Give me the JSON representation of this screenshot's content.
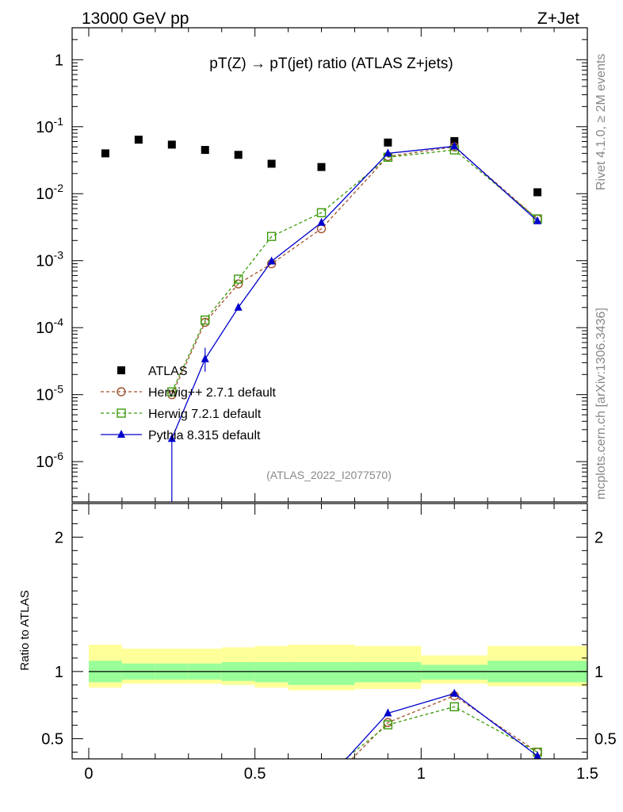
{
  "header": {
    "left": "13000 GeV pp",
    "right": "Z+Jet"
  },
  "side": {
    "rivet": "Rivet 4.1.0, ≥ 2M events",
    "mcplots": "mcplots.cern.ch [arXiv:1306.3436]"
  },
  "chart_data": {
    "type": "line",
    "title": "pT(Z) → pT(jet) ratio (ATLAS Z+jets)",
    "analysis": "(ATLAS_2022_I2077570)",
    "xlim": [
      -0.05,
      1.5
    ],
    "ylim_main": [
      2.5e-07,
      3.0
    ],
    "ylim_ratio": [
      0.35,
      2.25
    ],
    "ylabel_ratio": "Ratio to ATLAS",
    "yticks_main": [
      "10^-6",
      "10^-5",
      "10^-4",
      "10^-3",
      "10^-2",
      "10^-1",
      "1"
    ],
    "yticks_ratio": [
      "0.5",
      "1",
      "2"
    ],
    "xticks": [
      "0",
      "0.5",
      "1",
      "1.5"
    ],
    "bins": [
      [
        0.0,
        0.1
      ],
      [
        0.1,
        0.2
      ],
      [
        0.2,
        0.3
      ],
      [
        0.3,
        0.4
      ],
      [
        0.4,
        0.5
      ],
      [
        0.5,
        0.6
      ],
      [
        0.6,
        0.8
      ],
      [
        0.8,
        1.0
      ],
      [
        1.0,
        1.2
      ],
      [
        1.2,
        1.5
      ]
    ],
    "x": [
      0.05,
      0.15,
      0.25,
      0.35,
      0.45,
      0.55,
      0.7,
      0.9,
      1.1,
      1.35
    ],
    "data": {
      "name": "ATLAS",
      "values": [
        0.04,
        0.064,
        0.054,
        0.045,
        0.038,
        0.028,
        0.025,
        0.058,
        0.061,
        0.0105
      ]
    },
    "series": [
      {
        "name": "Herwig++ 2.7.1 default",
        "color": "#a0522d",
        "marker": "open-circle",
        "dash": true,
        "values": [
          null,
          null,
          1e-05,
          0.00012,
          0.00045,
          0.0009,
          0.003,
          0.036,
          0.05,
          0.0042
        ]
      },
      {
        "name": "Herwig 7.2.1 default",
        "color": "#3a9a0a",
        "marker": "open-square",
        "dash": true,
        "values": [
          null,
          null,
          1.1e-05,
          0.00013,
          0.00053,
          0.0023,
          0.0052,
          0.035,
          0.045,
          0.0042
        ]
      },
      {
        "name": "Pythia 8.315 default",
        "color": "#0000cc",
        "marker": "filled-triangle",
        "dash": false,
        "values": [
          null,
          null,
          2.2e-06,
          3.4e-05,
          0.0002,
          0.00098,
          0.0037,
          0.04,
          0.051,
          0.0039
        ]
      }
    ],
    "ratio_bands": {
      "inner": [
        [
          0.92,
          1.08
        ],
        [
          0.94,
          1.06
        ],
        [
          0.94,
          1.06
        ],
        [
          0.94,
          1.06
        ],
        [
          0.93,
          1.07
        ],
        [
          0.92,
          1.07
        ],
        [
          0.9,
          1.07
        ],
        [
          0.92,
          1.07
        ],
        [
          0.94,
          1.05
        ],
        [
          0.92,
          1.08
        ]
      ],
      "outer": [
        [
          0.88,
          1.2
        ],
        [
          0.91,
          1.17
        ],
        [
          0.91,
          1.17
        ],
        [
          0.91,
          1.17
        ],
        [
          0.9,
          1.18
        ],
        [
          0.88,
          1.19
        ],
        [
          0.86,
          1.2
        ],
        [
          0.87,
          1.19
        ],
        [
          0.91,
          1.12
        ],
        [
          0.89,
          1.19
        ]
      ]
    }
  }
}
